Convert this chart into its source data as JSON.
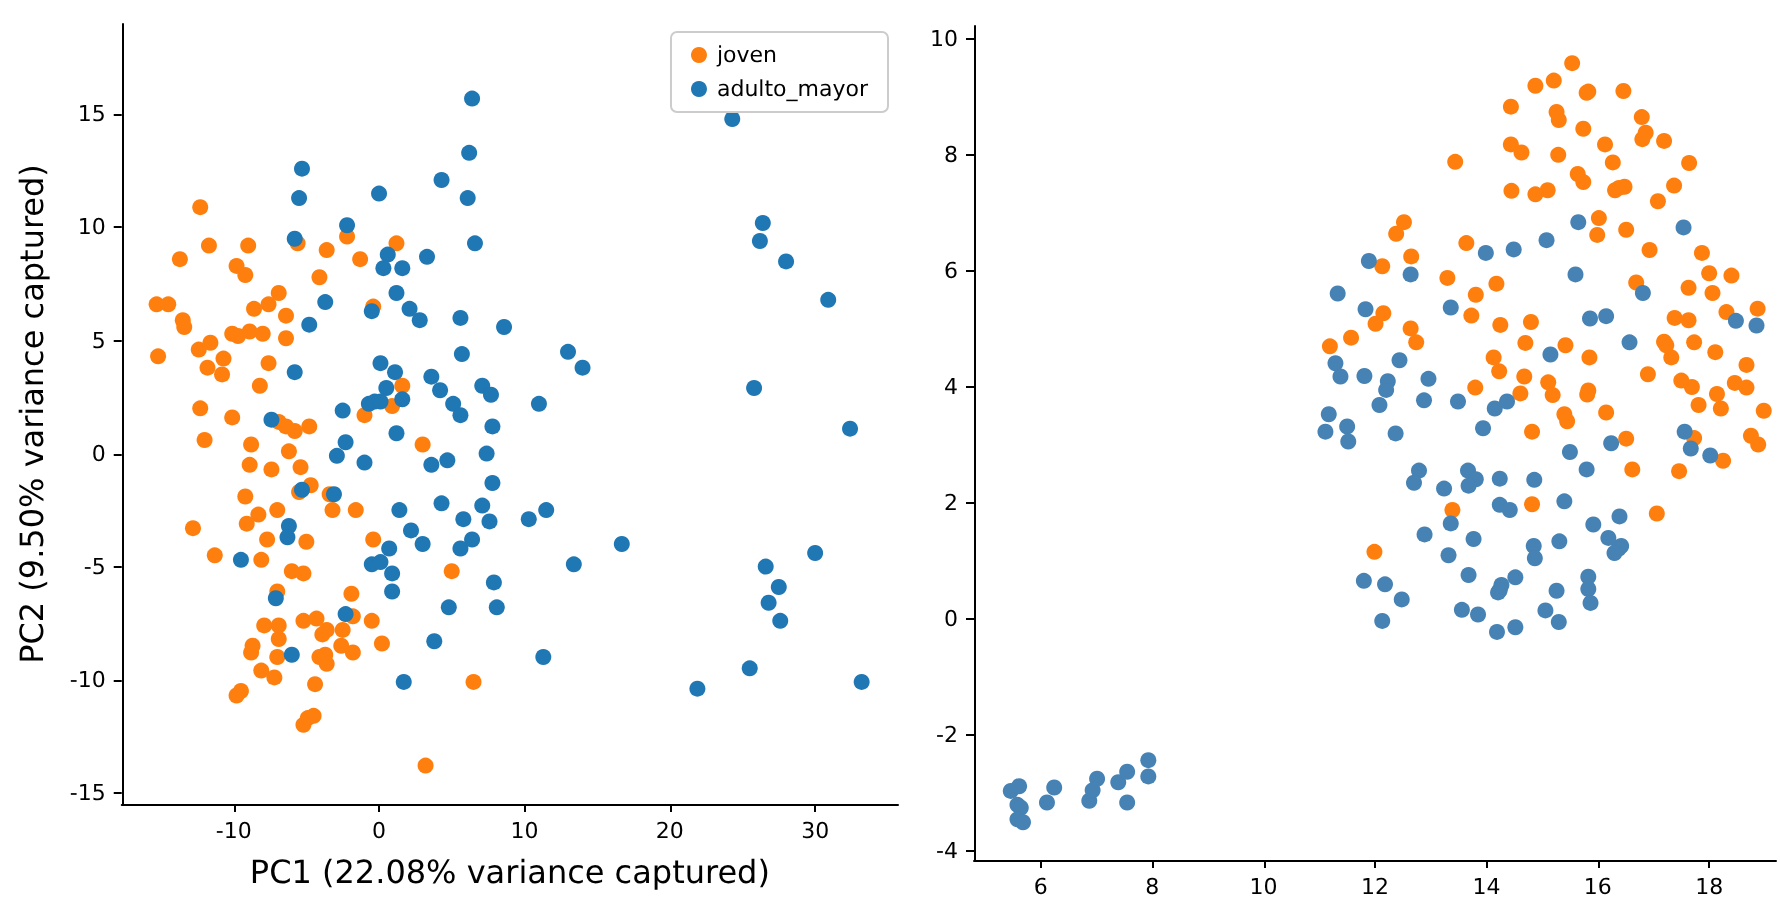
{
  "chart_data": [
    {
      "type": "scatter",
      "xlabel": "PC1 (22.08% variance captured)",
      "ylabel": "PC2 (9.50% variance captured)",
      "xlim": [
        -17.7,
        35.7
      ],
      "ylim": [
        -15.5,
        19
      ],
      "xticks": [
        -10,
        0,
        10,
        20,
        30
      ],
      "yticks": [
        -15,
        -10,
        -5,
        0,
        5,
        10,
        15
      ],
      "legend": "top right",
      "marker": "circle",
      "grid": false,
      "series": [
        {
          "name": "joven",
          "color": "#ff7f0e",
          "x": [
            -12.3,
            -13.7,
            -11.7,
            -9.0,
            -9.8,
            -9.2,
            -5.6,
            -3.6,
            -2.2,
            -1.3,
            -4.1,
            -15.3,
            -14.5,
            -13.5,
            -13.4,
            -6.9,
            -7.6,
            -8.6,
            -6.4,
            -15.2,
            -12.4,
            -11.6,
            -11.8,
            -10.7,
            -10.8,
            -10.1,
            -9.7,
            -8.9,
            -8.0,
            -6.4,
            -7.6,
            -8.2,
            -0.4,
            -12.3,
            -10.1,
            -12.0,
            -6.9,
            -6.4,
            -5.8,
            -4.8,
            -8.8,
            -6.2,
            -8.9,
            -7.4,
            -5.4,
            -1.0,
            -9.2,
            -4.7,
            -5.5,
            -3.4,
            -3.2,
            -1.6,
            -7.0,
            -8.3,
            -9.1,
            -12.8,
            -11.3,
            -7.7,
            -5.0,
            -8.1,
            -6.0,
            -5.2,
            -0.4,
            -7.0,
            -1.9,
            -1.8,
            -7.9,
            -6.9,
            -6.9,
            -8.7,
            -8.8,
            -5.2,
            -4.3,
            -3.9,
            -3.6,
            -2.5,
            -2.6,
            -1.8,
            -0.5,
            -7.0,
            -4.1,
            -3.7,
            -3.6,
            -8.1,
            -7.2,
            -4.4,
            -9.8,
            -9.5,
            -4.9,
            -4.5,
            -5.2,
            1.2,
            1.6,
            0.9,
            3.0,
            5.0,
            0.2,
            6.5,
            3.2
          ],
          "values": [
            10.9,
            8.6,
            9.2,
            9.2,
            8.3,
            7.9,
            9.3,
            9.0,
            9.6,
            8.6,
            7.8,
            6.6,
            6.6,
            5.9,
            5.6,
            7.1,
            6.6,
            6.4,
            6.1,
            4.3,
            4.6,
            4.9,
            3.8,
            4.2,
            3.5,
            5.3,
            5.2,
            5.4,
            5.3,
            5.1,
            4.0,
            3.0,
            6.5,
            2.0,
            1.6,
            0.6,
            1.4,
            1.2,
            1.0,
            1.2,
            0.4,
            0.1,
            -0.5,
            -0.7,
            -0.6,
            1.7,
            -1.9,
            -1.4,
            -1.7,
            -1.8,
            -2.5,
            -2.5,
            -2.5,
            -2.7,
            -3.1,
            -3.3,
            -4.5,
            -3.8,
            -3.9,
            -4.7,
            -5.2,
            -5.3,
            -3.8,
            -6.1,
            -6.2,
            -7.2,
            -7.6,
            -7.6,
            -8.2,
            -8.5,
            -8.8,
            -7.4,
            -7.3,
            -8.0,
            -7.8,
            -7.8,
            -8.5,
            -8.8,
            -7.4,
            -9.0,
            -9.0,
            -8.9,
            -9.3,
            -9.6,
            -9.9,
            -10.2,
            -10.7,
            -10.5,
            -11.7,
            -11.6,
            -12.0,
            9.3,
            3.0,
            2.1,
            0.4,
            -5.2,
            -8.4,
            -10.1,
            -13.8
          ]
        },
        {
          "name": "adulto_mayor",
          "color": "#1f77b4",
          "x": [
            -5.3,
            -5.5,
            -2.2,
            -5.8,
            -3.7,
            -4.8,
            -5.8,
            -2.5,
            -7.4,
            -2.3,
            -2.9,
            -5.3,
            -3.1,
            -6.2,
            -6.3,
            -9.5,
            -7.1,
            -2.3,
            -6.0,
            6.4,
            6.2,
            4.3,
            0.0,
            6.1,
            6.6,
            3.3,
            0.6,
            0.3,
            1.6,
            1.2,
            -0.5,
            2.1,
            2.8,
            5.6,
            8.6,
            5.7,
            0.1,
            1.1,
            3.6,
            4.2,
            0.5,
            1.6,
            -0.7,
            -0.3,
            0.1,
            5.1,
            5.6,
            7.1,
            7.7,
            7.8,
            1.2,
            -1.0,
            3.6,
            4.7,
            7.4,
            7.8,
            1.4,
            4.3,
            7.1,
            5.8,
            7.6,
            2.2,
            3.0,
            6.4,
            5.6,
            0.7,
            -0.5,
            0.1,
            0.9,
            0.9,
            4.8,
            7.9,
            8.1,
            3.8,
            1.7,
            11.3,
            11.0,
            13.0,
            14.0,
            10.3,
            11.5,
            16.7,
            13.4,
            24.3,
            26.4,
            26.2,
            28.0,
            30.9,
            25.8,
            32.4,
            30.0,
            26.6,
            27.5,
            26.8,
            27.6,
            25.5,
            21.9,
            33.2
          ],
          "values": [
            12.6,
            11.3,
            10.1,
            9.5,
            6.7,
            5.7,
            3.6,
            1.9,
            1.5,
            0.5,
            -0.1,
            -1.6,
            -1.8,
            -3.2,
            -3.7,
            -4.7,
            -6.4,
            -7.1,
            -8.9,
            15.7,
            13.3,
            12.1,
            11.5,
            11.3,
            9.3,
            8.7,
            8.8,
            8.2,
            8.2,
            7.1,
            6.3,
            6.4,
            5.9,
            6.0,
            5.6,
            4.4,
            4.0,
            3.6,
            3.4,
            2.8,
            2.9,
            2.4,
            2.2,
            2.3,
            2.3,
            2.2,
            1.7,
            3.0,
            2.6,
            1.2,
            0.9,
            -0.4,
            -0.5,
            -0.3,
            0.0,
            -1.3,
            -2.5,
            -2.2,
            -2.3,
            -2.9,
            -3.0,
            -3.4,
            -4.0,
            -3.8,
            -4.2,
            -4.2,
            -4.9,
            -4.8,
            -5.3,
            -6.1,
            -6.8,
            -5.7,
            -6.8,
            -8.3,
            -10.1,
            -9.0,
            2.2,
            4.5,
            3.8,
            -2.9,
            -2.5,
            -4.0,
            -4.9,
            14.8,
            10.2,
            9.4,
            8.5,
            6.8,
            2.9,
            1.1,
            -4.4,
            -5.0,
            -5.9,
            -6.6,
            -7.4,
            -9.5,
            -10.4,
            -10.1
          ]
        }
      ]
    },
    {
      "type": "scatter",
      "xlim": [
        4.8,
        19.2
      ],
      "ylim": [
        -4.15,
        10.22
      ],
      "xticks": [
        6,
        8,
        10,
        12,
        14,
        16,
        18
      ],
      "yticks": [
        -4,
        -2,
        0,
        2,
        4,
        6,
        8,
        10
      ],
      "legend": false,
      "marker": "circle",
      "grid": false,
      "series": [
        {
          "color": "#ff7f0e",
          "x": [
            15.54,
            14.88,
            15.21,
            15.8,
            15.83,
            16.46,
            14.44,
            15.26,
            15.3,
            15.74,
            16.79,
            16.86,
            16.8,
            17.19,
            16.13,
            14.44,
            14.63,
            13.44,
            15.29,
            16.27,
            17.64,
            15.64,
            15.74,
            16.31,
            16.48,
            16.38,
            17.37,
            14.45,
            14.88,
            15.1,
            17.08,
            16.02,
            15.99,
            16.51,
            12.52,
            12.38,
            12.65,
            12.13,
            13.64,
            16.93,
            17.87,
            13.3,
            14.18,
            18.0,
            18.4,
            13.81,
            16.69,
            17.63,
            18.06,
            13.73,
            12.15,
            12.01,
            18.31,
            18.87,
            12.64,
            12.74,
            14.25,
            14.8,
            14.7,
            15.42,
            11.19,
            11.57,
            17.38,
            17.63,
            17.19,
            17.23,
            17.73,
            17.32,
            18.11,
            14.13,
            14.23,
            15.85,
            16.9,
            14.68,
            15.11,
            15.19,
            15.83,
            15.81,
            14.61,
            13.8,
            17.5,
            17.69,
            18.67,
            18.46,
            18.67,
            17.81,
            18.14,
            18.21,
            18.98,
            16.15,
            15.4,
            15.45,
            14.82,
            16.51,
            17.73,
            18.75,
            18.88,
            16.62,
            17.46,
            18.25,
            13.39,
            14.82,
            17.06,
            11.99
          ],
          "values": [
            9.58,
            9.19,
            9.28,
            9.07,
            9.09,
            9.1,
            8.83,
            8.74,
            8.6,
            8.45,
            8.65,
            8.38,
            8.27,
            8.24,
            8.18,
            8.18,
            8.04,
            7.88,
            8.0,
            7.87,
            7.86,
            7.67,
            7.53,
            7.39,
            7.45,
            7.43,
            7.47,
            7.38,
            7.32,
            7.39,
            7.2,
            6.91,
            6.62,
            6.71,
            6.84,
            6.64,
            6.25,
            6.08,
            6.48,
            6.36,
            6.31,
            5.88,
            5.78,
            5.96,
            5.92,
            5.59,
            5.8,
            5.71,
            5.62,
            5.23,
            5.27,
            5.09,
            5.29,
            5.35,
            5.01,
            4.77,
            5.07,
            5.12,
            4.76,
            4.72,
            4.7,
            4.85,
            5.19,
            5.15,
            4.78,
            4.72,
            4.77,
            4.51,
            4.6,
            4.51,
            4.27,
            4.51,
            4.22,
            4.18,
            4.08,
            3.86,
            3.94,
            3.87,
            3.89,
            3.99,
            4.11,
            4.0,
            4.38,
            4.07,
            3.99,
            3.69,
            3.88,
            3.63,
            3.59,
            3.56,
            3.53,
            3.41,
            3.23,
            3.11,
            3.12,
            3.16,
            3.01,
            2.58,
            2.55,
            2.73,
            1.88,
            1.98,
            1.82,
            1.16
          ]
        },
        {
          "color": "#4682b4",
          "x": [
            5.46,
            5.61,
            5.58,
            5.64,
            5.58,
            5.68,
            6.11,
            6.24,
            6.87,
            6.93,
            7.01,
            7.39,
            7.55,
            7.55,
            7.93,
            7.93,
            15.65,
            15.08,
            17.54,
            13.99,
            14.49,
            11.89,
            12.64,
            15.6,
            11.33,
            16.81,
            11.83,
            13.36,
            15.86,
            16.15,
            18.48,
            18.85,
            16.57,
            11.29,
            12.44,
            15.15,
            11.38,
            11.81,
            12.23,
            12.2,
            12.96,
            12.08,
            12.88,
            13.49,
            14.15,
            14.37,
            11.17,
            11.11,
            11.5,
            11.52,
            12.37,
            13.94,
            16.24,
            17.56,
            17.67,
            18.02,
            15.5,
            15.8,
            12.79,
            12.7,
            13.24,
            13.67,
            13.81,
            13.68,
            14.24,
            14.86,
            14.24,
            14.42,
            15.4,
            16.39,
            15.92,
            16.19,
            12.89,
            13.36,
            13.77,
            14.85,
            14.87,
            15.31,
            16.42,
            16.37,
            16.3,
            13.32,
            13.68,
            11.8,
            12.18,
            12.48,
            12.13,
            13.56,
            13.85,
            14.19,
            14.52,
            14.27,
            14.24,
            14.21,
            14.52,
            15.06,
            15.3,
            15.26,
            15.83,
            15.83,
            15.87
          ],
          "values": [
            -2.96,
            -2.88,
            -3.2,
            -3.25,
            -3.45,
            -3.5,
            -3.16,
            -2.9,
            -3.13,
            -2.95,
            -2.75,
            -2.81,
            -2.63,
            -3.16,
            -2.43,
            -2.71,
            6.84,
            6.53,
            6.75,
            6.31,
            6.37,
            6.17,
            5.94,
            5.94,
            5.61,
            5.62,
            5.34,
            5.37,
            5.18,
            5.22,
            5.14,
            5.06,
            4.77,
            4.41,
            4.46,
            4.56,
            4.18,
            4.19,
            4.1,
            3.95,
            4.14,
            3.69,
            3.77,
            3.75,
            3.63,
            3.75,
            3.53,
            3.23,
            3.32,
            3.06,
            3.2,
            3.29,
            3.03,
            3.23,
            2.94,
            2.82,
            2.88,
            2.58,
            2.56,
            2.35,
            2.25,
            2.56,
            2.41,
            2.3,
            2.42,
            2.4,
            1.97,
            1.88,
            2.03,
            1.77,
            1.63,
            1.4,
            1.46,
            1.65,
            1.38,
            1.26,
            1.05,
            1.34,
            1.26,
            1.21,
            1.14,
            1.1,
            0.76,
            0.66,
            0.6,
            0.34,
            -0.03,
            0.16,
            0.08,
            -0.22,
            -0.14,
            0.59,
            0.5,
            0.46,
            0.72,
            0.15,
            -0.05,
            0.49,
            0.73,
            0.52,
            0.28
          ]
        }
      ]
    }
  ]
}
